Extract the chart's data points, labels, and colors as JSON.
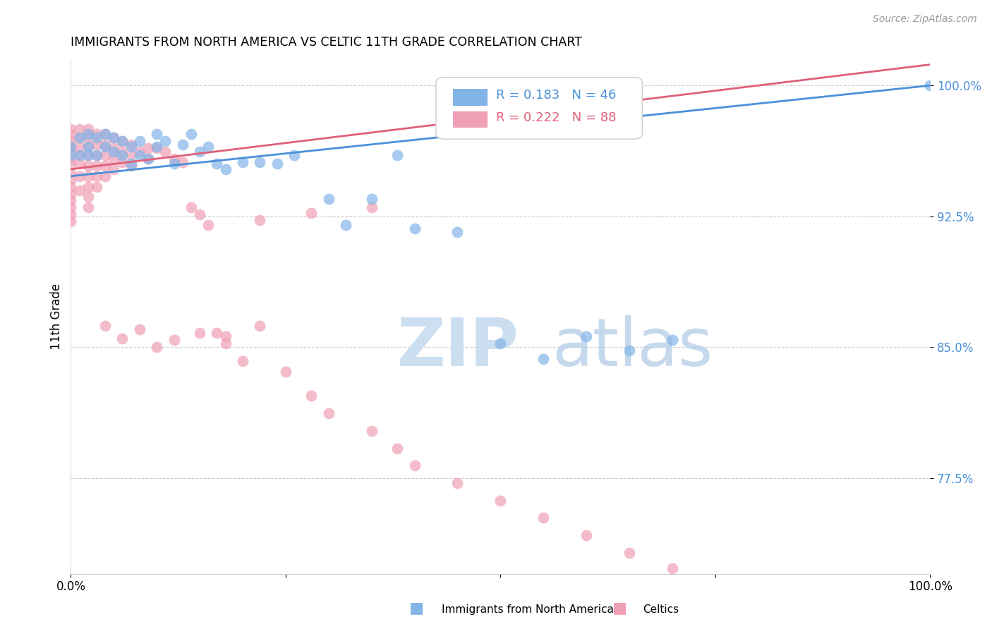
{
  "title": "IMMIGRANTS FROM NORTH AMERICA VS CELTIC 11TH GRADE CORRELATION CHART",
  "source": "Source: ZipAtlas.com",
  "ylabel": "11th Grade",
  "y_ticks": [
    1.0,
    0.925,
    0.85,
    0.775
  ],
  "y_tick_labels": [
    "100.0%",
    "92.5%",
    "85.0%",
    "77.5%"
  ],
  "xlim": [
    0.0,
    1.0
  ],
  "ylim": [
    0.72,
    1.015
  ],
  "blue_R": 0.183,
  "blue_N": 46,
  "pink_R": 0.222,
  "pink_N": 88,
  "blue_color": "#82b4e8",
  "pink_color": "#f0a0b5",
  "blue_line_color": "#4a90d9",
  "pink_line_color": "#e0607a",
  "legend_blue_text_color": "#4a90d9",
  "legend_pink_text_color": "#e0607a",
  "blue_line_x0": 0.0,
  "blue_line_y0": 0.948,
  "blue_line_x1": 1.0,
  "blue_line_y1": 1.0,
  "pink_line_x0": 0.0,
  "pink_line_y0": 0.952,
  "pink_line_x1": 0.35,
  "pink_line_y1": 0.973,
  "blue_scatter_x": [
    0.0,
    0.0,
    0.01,
    0.01,
    0.02,
    0.02,
    0.02,
    0.03,
    0.03,
    0.04,
    0.04,
    0.05,
    0.05,
    0.06,
    0.06,
    0.07,
    0.07,
    0.08,
    0.08,
    0.09,
    0.1,
    0.1,
    0.11,
    0.12,
    0.13,
    0.14,
    0.15,
    0.16,
    0.17,
    0.18,
    0.2,
    0.22,
    0.24,
    0.26,
    0.3,
    0.32,
    0.35,
    0.38,
    0.4,
    0.45,
    0.5,
    0.55,
    0.6,
    0.65,
    0.7,
    1.0
  ],
  "blue_scatter_y": [
    0.96,
    0.965,
    0.96,
    0.97,
    0.965,
    0.972,
    0.96,
    0.97,
    0.96,
    0.972,
    0.965,
    0.962,
    0.97,
    0.96,
    0.968,
    0.965,
    0.955,
    0.968,
    0.96,
    0.958,
    0.972,
    0.965,
    0.968,
    0.955,
    0.966,
    0.972,
    0.962,
    0.965,
    0.955,
    0.952,
    0.956,
    0.956,
    0.955,
    0.96,
    0.935,
    0.92,
    0.935,
    0.96,
    0.918,
    0.916,
    0.852,
    0.843,
    0.856,
    0.848,
    0.854,
    1.0
  ],
  "pink_scatter_x": [
    0.0,
    0.0,
    0.0,
    0.0,
    0.0,
    0.0,
    0.0,
    0.0,
    0.0,
    0.0,
    0.0,
    0.0,
    0.0,
    0.0,
    0.0,
    0.01,
    0.01,
    0.01,
    0.01,
    0.01,
    0.01,
    0.01,
    0.02,
    0.02,
    0.02,
    0.02,
    0.02,
    0.02,
    0.02,
    0.02,
    0.02,
    0.03,
    0.03,
    0.03,
    0.03,
    0.03,
    0.03,
    0.04,
    0.04,
    0.04,
    0.04,
    0.04,
    0.05,
    0.05,
    0.05,
    0.05,
    0.06,
    0.06,
    0.06,
    0.07,
    0.07,
    0.07,
    0.08,
    0.09,
    0.09,
    0.1,
    0.11,
    0.12,
    0.13,
    0.14,
    0.15,
    0.16,
    0.17,
    0.18,
    0.2,
    0.22,
    0.25,
    0.28,
    0.3,
    0.35,
    0.38,
    0.4,
    0.45,
    0.5,
    0.55,
    0.6,
    0.65,
    0.7,
    0.35,
    0.28,
    0.22,
    0.18,
    0.15,
    0.12,
    0.1,
    0.08,
    0.06,
    0.04
  ],
  "pink_scatter_y": [
    0.975,
    0.972,
    0.968,
    0.965,
    0.962,
    0.958,
    0.955,
    0.95,
    0.946,
    0.942,
    0.938,
    0.934,
    0.93,
    0.926,
    0.922,
    0.975,
    0.97,
    0.965,
    0.96,
    0.955,
    0.948,
    0.94,
    0.975,
    0.97,
    0.965,
    0.96,
    0.954,
    0.948,
    0.942,
    0.936,
    0.93,
    0.972,
    0.966,
    0.96,
    0.954,
    0.948,
    0.942,
    0.972,
    0.966,
    0.96,
    0.954,
    0.948,
    0.97,
    0.964,
    0.958,
    0.952,
    0.968,
    0.962,
    0.956,
    0.966,
    0.96,
    0.954,
    0.962,
    0.964,
    0.958,
    0.964,
    0.962,
    0.958,
    0.956,
    0.93,
    0.926,
    0.92,
    0.858,
    0.856,
    0.842,
    0.862,
    0.836,
    0.822,
    0.812,
    0.802,
    0.792,
    0.782,
    0.772,
    0.762,
    0.752,
    0.742,
    0.732,
    0.723,
    0.93,
    0.927,
    0.923,
    0.852,
    0.858,
    0.854,
    0.85,
    0.86,
    0.855,
    0.862
  ]
}
